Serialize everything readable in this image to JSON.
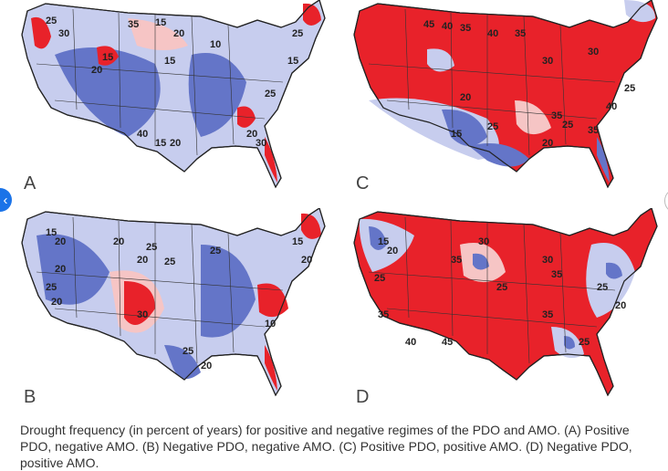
{
  "navigation": {
    "prev_icon": "chevron-left-icon",
    "prev_glyph": "‹",
    "next_icon": "chevron-right-icon",
    "next_glyph": "›"
  },
  "colors": {
    "deep_red": "#e8222a",
    "light_red": "#f6c5c5",
    "deep_blue": "#6475c8",
    "light_blue": "#c7cdee",
    "boundary": "#222222"
  },
  "panels": [
    {
      "letter": "A",
      "contour_labels": [
        "25",
        "30",
        "35",
        "15",
        "20",
        "10",
        "15",
        "15",
        "20",
        "40",
        "15",
        "20",
        "25",
        "15",
        "25",
        "20",
        "30"
      ]
    },
    {
      "letter": "B",
      "contour_labels": [
        "15",
        "20",
        "20",
        "25",
        "20",
        "25",
        "30",
        "20",
        "25",
        "20",
        "10",
        "15",
        "20",
        "25",
        "25",
        "20"
      ]
    },
    {
      "letter": "C",
      "contour_labels": [
        "45",
        "40",
        "35",
        "40",
        "35",
        "30",
        "20",
        "25",
        "15",
        "20",
        "30",
        "35",
        "25",
        "40",
        "35",
        "25"
      ]
    },
    {
      "letter": "D",
      "contour_labels": [
        "15",
        "20",
        "25",
        "35",
        "30",
        "25",
        "35",
        "40",
        "45",
        "30",
        "35",
        "25",
        "20",
        "25",
        "35"
      ]
    }
  ],
  "caption": "Drought frequency (in percent of years) for positive and negative regimes of the PDO and AMO. (A) Positive PDO, negative AMO. (B) Negative PDO, negative AMO. (C) Positive PDO, positive AMO. (D) Negative PDO, positive AMO."
}
